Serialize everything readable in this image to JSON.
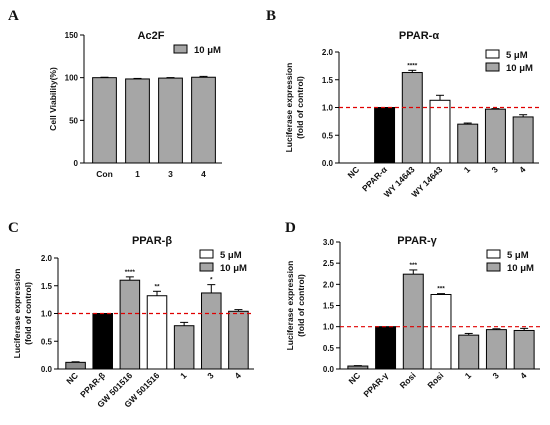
{
  "colors": {
    "gray": "#a6a6a6",
    "black": "#000000",
    "white": "#ffffff",
    "nc": "#8c8c8c",
    "refline": "#e00000"
  },
  "chart_data": [
    {
      "panel": "A",
      "title": "Ac2F",
      "type": "bar",
      "ylabel": "Cell Viability(%)",
      "ylim": [
        0,
        150
      ],
      "yticks": [
        0,
        50,
        100,
        150
      ],
      "legend": [
        {
          "label": "10 μM",
          "fill": "gray"
        }
      ],
      "refline": null,
      "bars": [
        {
          "label": "Con",
          "value": 100,
          "error": 0.5,
          "fill": "gray",
          "ann": ""
        },
        {
          "label": "1",
          "value": 98.5,
          "error": 0.6,
          "fill": "gray",
          "ann": ""
        },
        {
          "label": "3",
          "value": 99.5,
          "error": 0.6,
          "fill": "gray",
          "ann": ""
        },
        {
          "label": "4",
          "value": 100.5,
          "error": 1.0,
          "fill": "gray",
          "ann": ""
        }
      ]
    },
    {
      "panel": "B",
      "title": "PPAR-α",
      "type": "bar",
      "ylabel": "Luciferase expression",
      "ylabel2": "(fold of control)",
      "ylim": [
        0,
        2.0
      ],
      "yticks": [
        0.0,
        0.5,
        1.0,
        1.5,
        2.0
      ],
      "legend": [
        {
          "label": "5  μM",
          "fill": "white"
        },
        {
          "label": "10 μM",
          "fill": "gray"
        }
      ],
      "refline": 1.0,
      "bars": [
        {
          "label": "NC",
          "value": 0.0,
          "error": 0.0,
          "fill": "nc",
          "ann": ""
        },
        {
          "label": "PPAR-α",
          "value": 1.0,
          "error": 0.0,
          "fill": "black",
          "ann": ""
        },
        {
          "label": "WY 14643",
          "value": 1.63,
          "error": 0.04,
          "fill": "gray",
          "ann": "****"
        },
        {
          "label": "WY 14643",
          "value": 1.13,
          "error": 0.09,
          "fill": "white",
          "ann": ""
        },
        {
          "label": "1",
          "value": 0.7,
          "error": 0.02,
          "fill": "gray",
          "ann": ""
        },
        {
          "label": "3",
          "value": 0.97,
          "error": 0.01,
          "fill": "gray",
          "ann": ""
        },
        {
          "label": "4",
          "value": 0.83,
          "error": 0.04,
          "fill": "gray",
          "ann": ""
        }
      ]
    },
    {
      "panel": "C",
      "title": "PPAR-β",
      "type": "bar",
      "ylabel": "Luciferase expression",
      "ylabel2": "(fold of control)",
      "ylim": [
        0,
        2.0
      ],
      "yticks": [
        0.0,
        0.5,
        1.0,
        1.5,
        2.0
      ],
      "legend": [
        {
          "label": "5  μM",
          "fill": "white"
        },
        {
          "label": "10 μM",
          "fill": "gray"
        }
      ],
      "refline": 1.0,
      "bars": [
        {
          "label": "NC",
          "value": 0.12,
          "error": 0.01,
          "fill": "nc",
          "ann": ""
        },
        {
          "label": "PPAR-β",
          "value": 1.0,
          "error": 0.0,
          "fill": "black",
          "ann": ""
        },
        {
          "label": "GW 501516",
          "value": 1.6,
          "error": 0.06,
          "fill": "gray",
          "ann": "****"
        },
        {
          "label": "GW 501516",
          "value": 1.32,
          "error": 0.08,
          "fill": "white",
          "ann": "**"
        },
        {
          "label": "1",
          "value": 0.78,
          "error": 0.06,
          "fill": "gray",
          "ann": ""
        },
        {
          "label": "3",
          "value": 1.37,
          "error": 0.15,
          "fill": "gray",
          "ann": "*"
        },
        {
          "label": "4",
          "value": 1.04,
          "error": 0.03,
          "fill": "gray",
          "ann": ""
        }
      ]
    },
    {
      "panel": "D",
      "title": "PPAR-γ",
      "type": "bar",
      "ylabel": "Luciferase expression",
      "ylabel2": "(fold of control)",
      "ylim": [
        0,
        3.0
      ],
      "yticks": [
        0.0,
        0.5,
        1.0,
        1.5,
        2.0,
        2.5,
        3.0
      ],
      "legend": [
        {
          "label": "5  μM",
          "fill": "white"
        },
        {
          "label": "10 μM",
          "fill": "gray"
        }
      ],
      "refline": 1.0,
      "bars": [
        {
          "label": "NC",
          "value": 0.07,
          "error": 0.01,
          "fill": "nc",
          "ann": ""
        },
        {
          "label": "PPAR-γ",
          "value": 1.0,
          "error": 0.0,
          "fill": "black",
          "ann": ""
        },
        {
          "label": "Rosi",
          "value": 2.24,
          "error": 0.1,
          "fill": "gray",
          "ann": "***"
        },
        {
          "label": "Rosi",
          "value": 1.76,
          "error": 0.02,
          "fill": "white",
          "ann": "***"
        },
        {
          "label": "1",
          "value": 0.8,
          "error": 0.04,
          "fill": "gray",
          "ann": ""
        },
        {
          "label": "3",
          "value": 0.93,
          "error": 0.02,
          "fill": "gray",
          "ann": ""
        },
        {
          "label": "4",
          "value": 0.91,
          "error": 0.05,
          "fill": "gray",
          "ann": ""
        }
      ]
    }
  ]
}
